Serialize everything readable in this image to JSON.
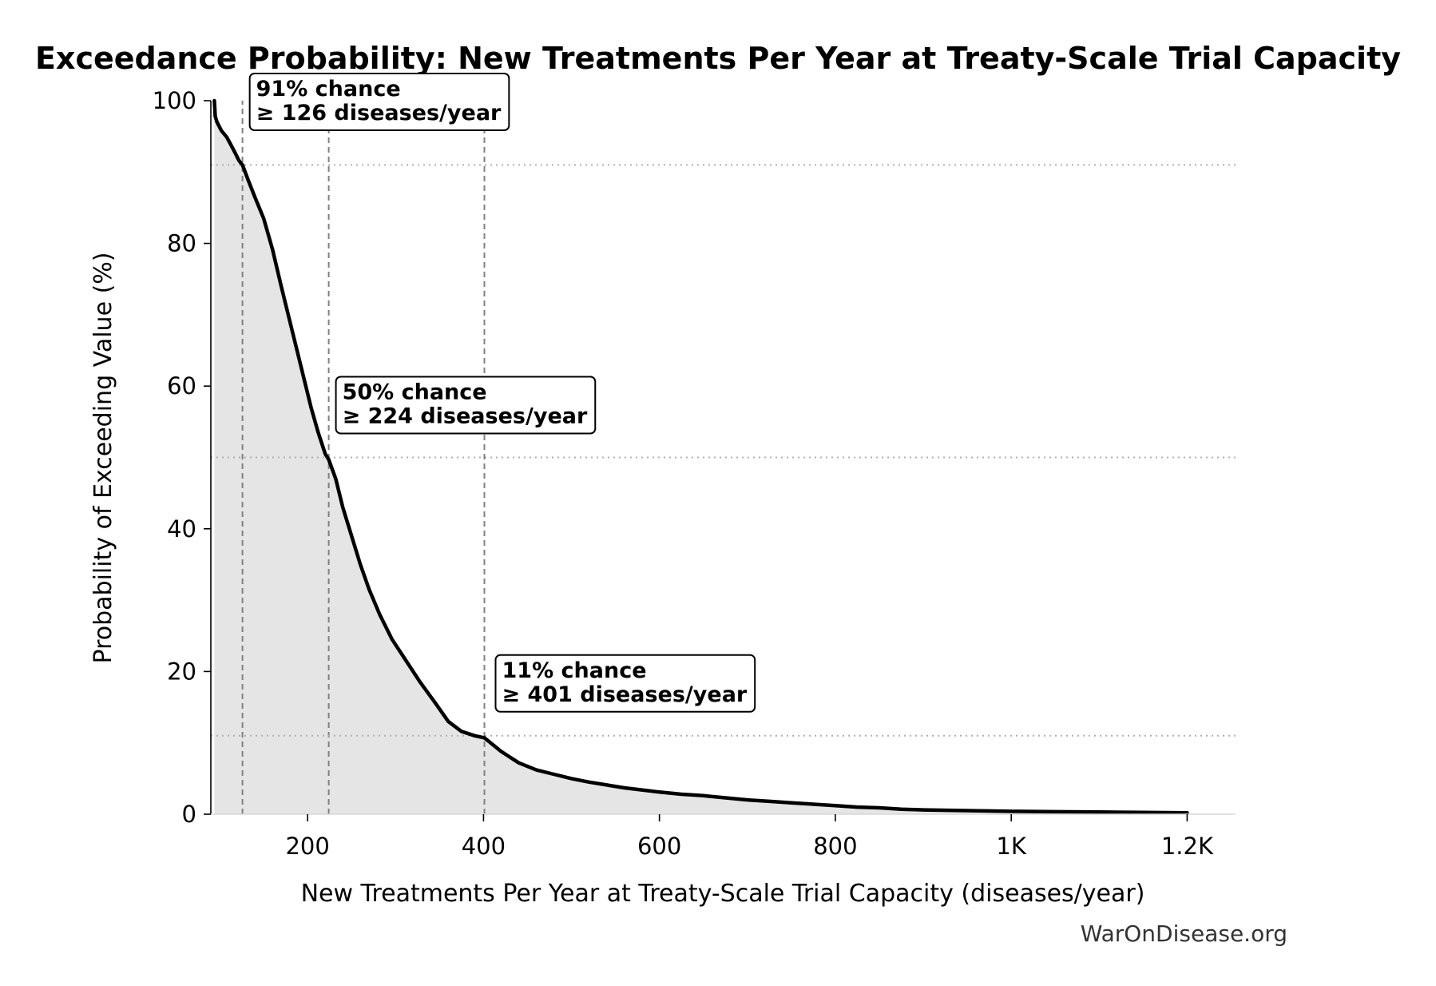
{
  "chart_data": {
    "type": "area",
    "title": "Exceedance Probability: New Treatments Per Year at Treaty-Scale Trial Capacity",
    "xlabel": "New Treatments Per Year at Treaty-Scale Trial Capacity (diseases/year)",
    "ylabel": "Probability of Exceeding Value (%)",
    "xlim": [
      90,
      1255
    ],
    "ylim": [
      0,
      100
    ],
    "x_ticks": [
      {
        "value": 200,
        "label": "200"
      },
      {
        "value": 400,
        "label": "400"
      },
      {
        "value": 600,
        "label": "600"
      },
      {
        "value": 800,
        "label": "800"
      },
      {
        "value": 1000,
        "label": "1K"
      },
      {
        "value": 1200,
        "label": "1.2K"
      }
    ],
    "y_ticks": [
      {
        "value": 0,
        "label": "0"
      },
      {
        "value": 20,
        "label": "20"
      },
      {
        "value": 40,
        "label": "40"
      },
      {
        "value": 60,
        "label": "60"
      },
      {
        "value": 80,
        "label": "80"
      },
      {
        "value": 100,
        "label": "100"
      }
    ],
    "grid": false,
    "series": [
      {
        "x": [
          94,
          95,
          97,
          102,
          108,
          112,
          118,
          122,
          126,
          132,
          140,
          150,
          160,
          170,
          178,
          188,
          196,
          204,
          212,
          220,
          224,
          232,
          240,
          250,
          260,
          270,
          282,
          296,
          312,
          328,
          344,
          360,
          375,
          390,
          401,
          420,
          440,
          460,
          480,
          500,
          520,
          540,
          560,
          580,
          600,
          625,
          650,
          675,
          700,
          725,
          750,
          775,
          800,
          825,
          850,
          875,
          900,
          950,
          1000,
          1050,
          1100,
          1150,
          1200
        ],
        "y": [
          100,
          97.8,
          97.0,
          95.8,
          94.9,
          94.0,
          92.6,
          91.6,
          91.0,
          89.0,
          86.5,
          83.5,
          79.2,
          74.0,
          70.0,
          65.0,
          61.0,
          57.0,
          53.5,
          50.5,
          49.7,
          47.0,
          43.0,
          39.0,
          35.0,
          31.5,
          28.0,
          24.5,
          21.5,
          18.5,
          15.8,
          13.0,
          11.6,
          11.0,
          10.7,
          8.8,
          7.2,
          6.2,
          5.6,
          5.0,
          4.5,
          4.1,
          3.7,
          3.4,
          3.1,
          2.8,
          2.6,
          2.3,
          2.0,
          1.8,
          1.6,
          1.4,
          1.2,
          1.0,
          0.9,
          0.7,
          0.6,
          0.5,
          0.4,
          0.35,
          0.3,
          0.25,
          0.2
        ]
      }
    ],
    "reference_lines": [
      {
        "x": 126,
        "y": 91
      },
      {
        "x": 224,
        "y": 50
      },
      {
        "x": 401,
        "y": 11
      }
    ],
    "annotations": [
      {
        "line1": "91% chance",
        "line2": "≥ 126 diseases/year",
        "x": 126,
        "y": 91
      },
      {
        "line1": "50% chance",
        "line2": "≥ 224 diseases/year",
        "x": 224,
        "y": 50
      },
      {
        "line1": "11% chance",
        "line2": "≥ 401 diseases/year",
        "x": 401,
        "y": 11
      }
    ]
  },
  "watermark": "WarOnDisease.org",
  "colors": {
    "line": "#000000",
    "fill": "#e5e5e5",
    "reference_vertical": "#808080",
    "reference_horizontal": "#b0b0b0",
    "annotation_border": "#000000",
    "annotation_fill": "#ffffff",
    "watermark": "#333333"
  }
}
